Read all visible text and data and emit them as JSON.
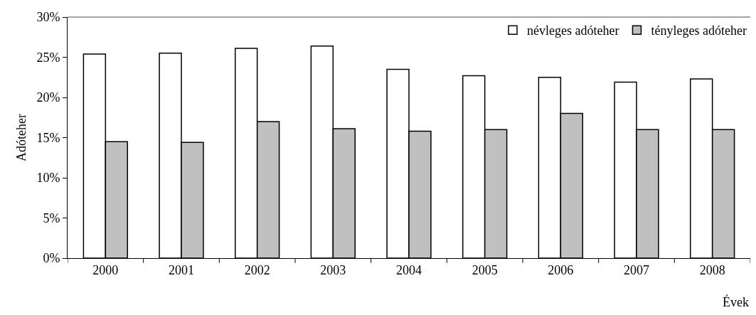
{
  "chart_data": {
    "type": "bar",
    "xlabel": "Évek",
    "ylabel": "Adóteher",
    "categories": [
      "2000",
      "2001",
      "2002",
      "2003",
      "2004",
      "2005",
      "2006",
      "2007",
      "2008"
    ],
    "series": [
      {
        "name": "névleges adóteher",
        "color": "#ffffff",
        "values": [
          25.4,
          25.5,
          26.1,
          26.4,
          23.5,
          22.7,
          22.5,
          21.9,
          22.3
        ]
      },
      {
        "name": "tényleges adóteher",
        "color": "#c0c0c0",
        "values": [
          14.5,
          14.4,
          17.0,
          16.1,
          15.8,
          16.0,
          18.0,
          16.0,
          16.0
        ]
      }
    ],
    "ylim": [
      0,
      30
    ],
    "yticks": [
      {
        "value": 0,
        "label": "0%"
      },
      {
        "value": 5,
        "label": "5%"
      },
      {
        "value": 10,
        "label": "10%"
      },
      {
        "value": 15,
        "label": "15%"
      },
      {
        "value": 20,
        "label": "20%"
      },
      {
        "value": 25,
        "label": "25%"
      },
      {
        "value": 30,
        "label": "30%"
      }
    ],
    "grid": false,
    "legend": "top right"
  }
}
